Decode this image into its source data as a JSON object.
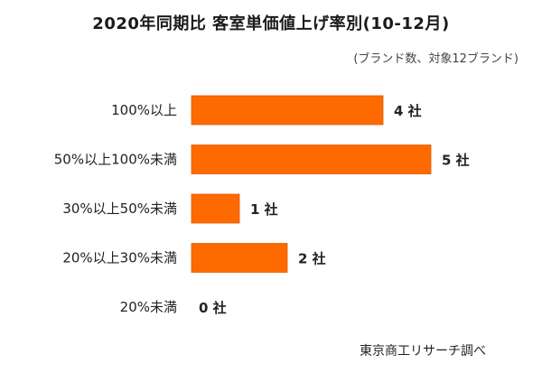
{
  "chart_data": {
    "type": "bar",
    "orientation": "horizontal",
    "title": "2020年同期比  客室単価値上げ率別(10-12月)",
    "subtitle": "(ブランド数、対象12ブランド)",
    "source": "東京商工リサーチ調べ",
    "categories": [
      "100%以上",
      "50%以上100%未満",
      "30%以上50%未満",
      "20%以上30%未満",
      "20%未満"
    ],
    "values": [
      4,
      5,
      1,
      2,
      0
    ],
    "value_labels": [
      "4 社",
      "5 社",
      "1 社",
      "2 社",
      "0 社"
    ],
    "xlim": [
      0,
      5
    ],
    "bar_color": "#ff6a00",
    "grid": false,
    "legend": "none"
  }
}
